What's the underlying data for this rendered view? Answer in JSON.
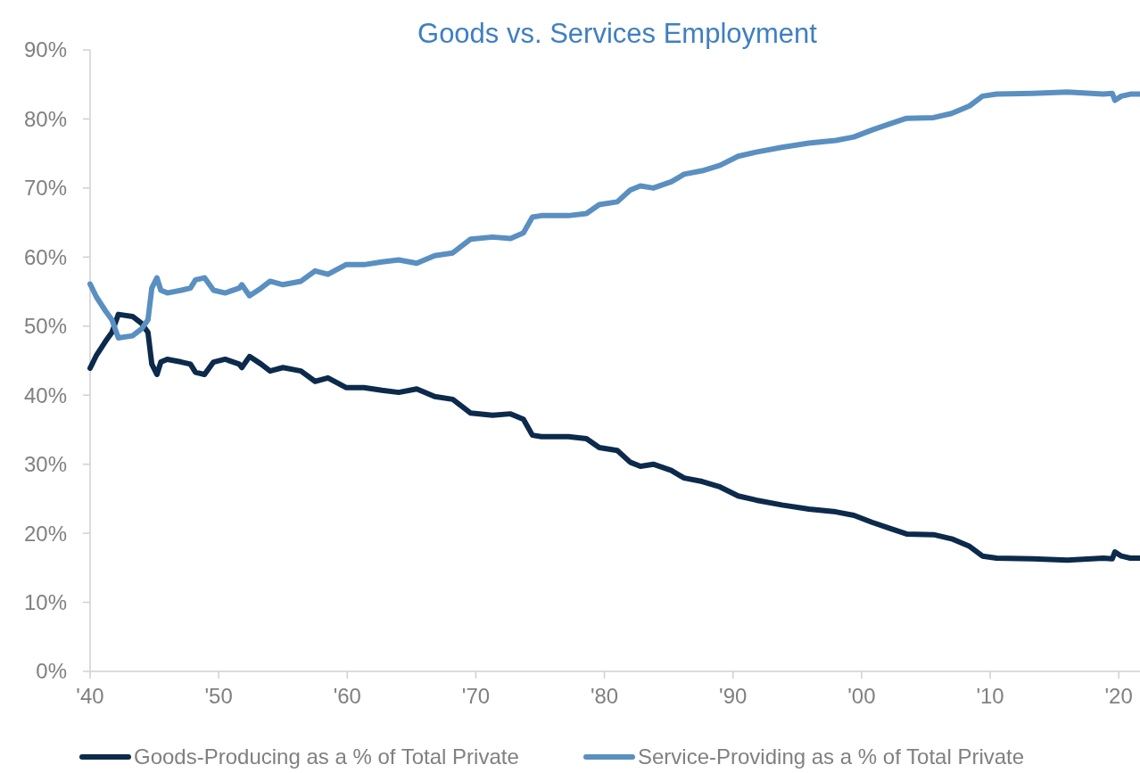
{
  "chart_data": {
    "type": "line",
    "title": "Goods vs. Services Employment",
    "x": [
      1940.0,
      1940.5,
      1941.2,
      1941.7,
      1942.2,
      1943.3,
      1944.0,
      1944.5,
      1944.8,
      1945.2,
      1945.5,
      1946.0,
      1947.1,
      1947.8,
      1948.2,
      1948.9,
      1949.6,
      1950.5,
      1951.6,
      1951.8,
      1952.4,
      1953.3,
      1954.0,
      1955.0,
      1956.4,
      1957.5,
      1958.5,
      1959.9,
      1961.3,
      1962.7,
      1964.0,
      1965.4,
      1966.8,
      1968.2,
      1969.6,
      1971.3,
      1972.7,
      1973.7,
      1974.4,
      1975.1,
      1977.2,
      1978.6,
      1979.6,
      1981.0,
      1982.0,
      1982.8,
      1983.8,
      1985.2,
      1986.2,
      1987.6,
      1989.0,
      1990.4,
      1991.8,
      1993.8,
      1995.9,
      1998.0,
      1999.4,
      2000.8,
      2002.2,
      2003.5,
      2005.6,
      2007.0,
      2008.4,
      2009.4,
      2010.5,
      2013.3,
      2016.0,
      2018.8,
      2019.5,
      2019.7,
      2020.2,
      2020.9,
      2021.9
    ],
    "series": [
      {
        "name": "Goods-Producing as a % of Total Private",
        "color": "#0c2a4b",
        "values": [
          43.9,
          45.8,
          47.8,
          49.1,
          51.7,
          51.4,
          50.4,
          49.1,
          44.5,
          43.0,
          44.8,
          45.2,
          44.8,
          44.5,
          43.3,
          43.0,
          44.8,
          45.2,
          44.5,
          44.0,
          45.6,
          44.5,
          43.5,
          44.0,
          43.5,
          42.0,
          42.5,
          41.1,
          41.1,
          40.7,
          40.4,
          40.9,
          39.8,
          39.4,
          37.4,
          37.1,
          37.3,
          36.5,
          34.2,
          34.0,
          34.0,
          33.7,
          32.4,
          32.0,
          30.3,
          29.7,
          30.0,
          29.1,
          28.0,
          27.5,
          26.7,
          25.4,
          24.8,
          24.1,
          23.5,
          23.1,
          22.6,
          21.6,
          20.7,
          19.9,
          19.8,
          19.2,
          18.1,
          16.7,
          16.4,
          16.3,
          16.1,
          16.4,
          16.3,
          17.3,
          16.7,
          16.4,
          16.4
        ]
      },
      {
        "name": "Service-Providing as a % of Total Private",
        "color": "#5a8fc1",
        "values": [
          56.1,
          54.2,
          52.2,
          50.9,
          48.3,
          48.6,
          49.6,
          50.9,
          55.5,
          57.0,
          55.2,
          54.8,
          55.2,
          55.5,
          56.7,
          57.0,
          55.2,
          54.8,
          55.5,
          56.0,
          54.4,
          55.5,
          56.5,
          56.0,
          56.5,
          58.0,
          57.5,
          58.9,
          58.9,
          59.3,
          59.6,
          59.1,
          60.2,
          60.6,
          62.6,
          62.9,
          62.7,
          63.5,
          65.8,
          66.0,
          66.0,
          66.3,
          67.6,
          68.0,
          69.7,
          70.3,
          70.0,
          70.9,
          72.0,
          72.5,
          73.3,
          74.6,
          75.2,
          75.9,
          76.5,
          76.9,
          77.4,
          78.4,
          79.3,
          80.1,
          80.2,
          80.8,
          81.9,
          83.3,
          83.6,
          83.7,
          83.9,
          83.6,
          83.7,
          82.7,
          83.3,
          83.6,
          83.6
        ]
      }
    ],
    "xlim": [
      1940,
      2022
    ],
    "xticks": [
      {
        "value": 1940,
        "label": "'40"
      },
      {
        "value": 1950,
        "label": "'50"
      },
      {
        "value": 1960,
        "label": "'60"
      },
      {
        "value": 1970,
        "label": "'70"
      },
      {
        "value": 1980,
        "label": "'80"
      },
      {
        "value": 1990,
        "label": "'90"
      },
      {
        "value": 2000,
        "label": "'00"
      },
      {
        "value": 2010,
        "label": "'10"
      },
      {
        "value": 2020,
        "label": "'20"
      }
    ],
    "ylim": [
      0,
      90
    ],
    "yticks": [
      {
        "value": 0,
        "label": "0%"
      },
      {
        "value": 10,
        "label": "10%"
      },
      {
        "value": 20,
        "label": "20%"
      },
      {
        "value": 30,
        "label": "30%"
      },
      {
        "value": 40,
        "label": "40%"
      },
      {
        "value": 50,
        "label": "50%"
      },
      {
        "value": 60,
        "label": "60%"
      },
      {
        "value": 70,
        "label": "70%"
      },
      {
        "value": 80,
        "label": "80%"
      },
      {
        "value": 90,
        "label": "90%"
      }
    ],
    "grid": false,
    "legend": "bottom",
    "marker": "none",
    "line_style": "solid"
  }
}
